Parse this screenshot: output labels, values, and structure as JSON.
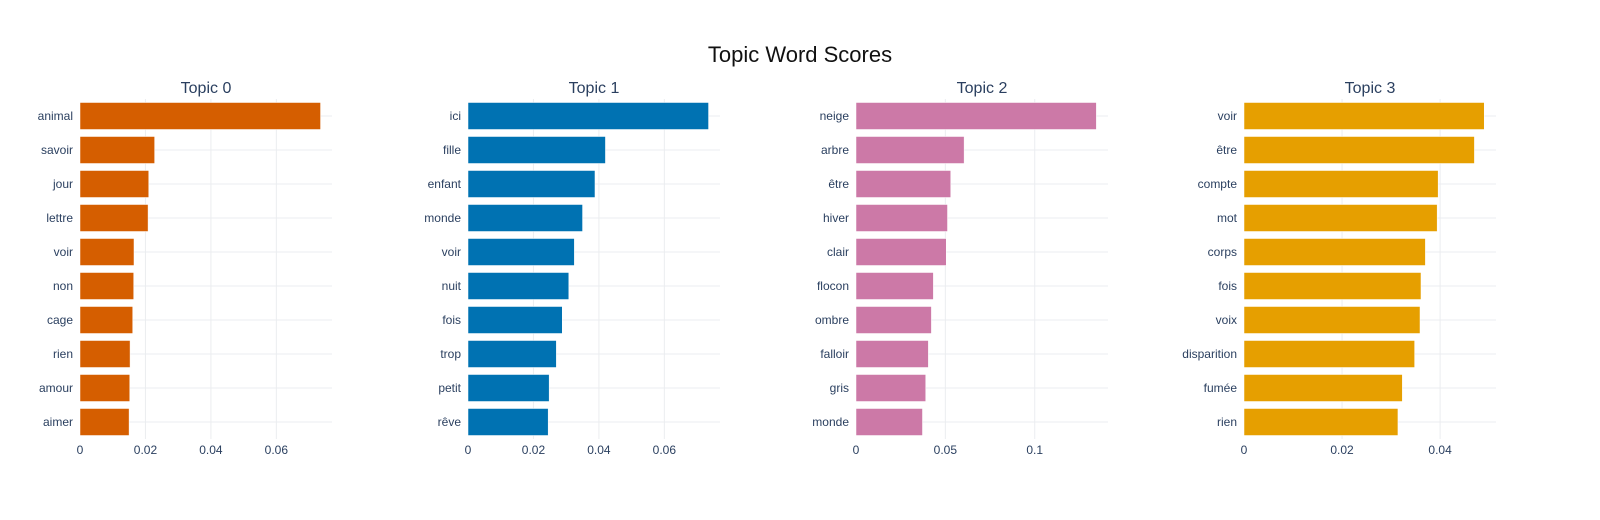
{
  "page": {
    "title": "Topic Word Scores"
  },
  "chart_data": [
    {
      "type": "bar",
      "orientation": "horizontal",
      "title": "Topic 0",
      "color": "#D55E00",
      "categories": [
        "animal",
        "savoir",
        "jour",
        "lettre",
        "voir",
        "non",
        "cage",
        "rien",
        "amour",
        "aimer"
      ],
      "values": [
        0.0735,
        0.0228,
        0.021,
        0.0208,
        0.0165,
        0.0164,
        0.0161,
        0.0153,
        0.0152,
        0.015
      ],
      "xlim": [
        0,
        0.077
      ],
      "xticks": [
        0,
        0.02,
        0.04,
        0.06
      ],
      "xtick_labels": [
        "0",
        "0.02",
        "0.04",
        "0.06"
      ]
    },
    {
      "type": "bar",
      "orientation": "horizontal",
      "title": "Topic 1",
      "color": "#0072B2",
      "categories": [
        "ici",
        "fille",
        "enfant",
        "monde",
        "voir",
        "nuit",
        "fois",
        "trop",
        "petit",
        "rêve"
      ],
      "values": [
        0.0735,
        0.042,
        0.0388,
        0.035,
        0.0325,
        0.0308,
        0.0288,
        0.027,
        0.0248,
        0.0245
      ],
      "xlim": [
        0,
        0.077
      ],
      "xticks": [
        0,
        0.02,
        0.04,
        0.06
      ],
      "xtick_labels": [
        "0",
        "0.02",
        "0.04",
        "0.06"
      ]
    },
    {
      "type": "bar",
      "orientation": "horizontal",
      "title": "Topic 2",
      "color": "#CC79A7",
      "categories": [
        "neige",
        "arbre",
        "être",
        "hiver",
        "clair",
        "flocon",
        "ombre",
        "falloir",
        "gris",
        "monde"
      ],
      "values": [
        0.1345,
        0.0605,
        0.053,
        0.0512,
        0.0505,
        0.0433,
        0.0422,
        0.0405,
        0.039,
        0.0372
      ],
      "xlim": [
        0,
        0.141
      ],
      "xticks": [
        0,
        0.05,
        0.1
      ],
      "xtick_labels": [
        "0",
        "0.05",
        "0.1"
      ]
    },
    {
      "type": "bar",
      "orientation": "horizontal",
      "title": "Topic 3",
      "color": "#E69F00",
      "categories": [
        "voir",
        "être",
        "compte",
        "mot",
        "corps",
        "fois",
        "voix",
        "disparition",
        "fumée",
        "rien"
      ],
      "values": [
        0.049,
        0.047,
        0.0396,
        0.0394,
        0.037,
        0.0361,
        0.0359,
        0.0348,
        0.0323,
        0.0314
      ],
      "xlim": [
        0,
        0.0514
      ],
      "xticks": [
        0,
        0.02,
        0.04
      ],
      "xtick_labels": [
        "0",
        "0.02",
        "0.04"
      ]
    }
  ]
}
